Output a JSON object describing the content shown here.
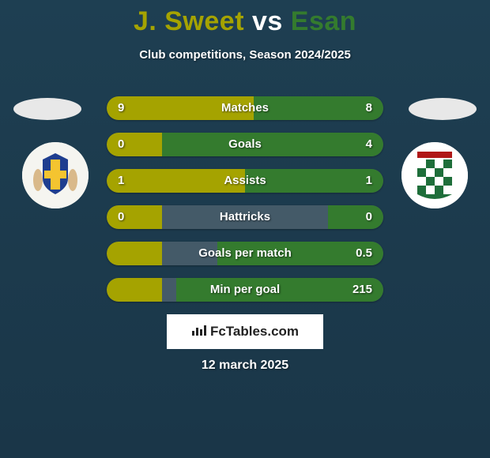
{
  "title": {
    "player1": "J. Sweet",
    "vs": "vs",
    "player2": "Esan"
  },
  "subtitle": "Club competitions, Season 2024/2025",
  "colors": {
    "p1": "#a5a300",
    "p2": "#347b2e",
    "bar_bg": "#445a68",
    "page_bg": "#1c3c4f"
  },
  "stats": [
    {
      "label": "Matches",
      "left_val": "9",
      "right_val": "8",
      "left_pct": 53,
      "right_pct": 47
    },
    {
      "label": "Goals",
      "left_val": "0",
      "right_val": "4",
      "left_pct": 20,
      "right_pct": 80
    },
    {
      "label": "Assists",
      "left_val": "1",
      "right_val": "1",
      "left_pct": 50,
      "right_pct": 50
    },
    {
      "label": "Hattricks",
      "left_val": "0",
      "right_val": "0",
      "left_pct": 20,
      "right_pct": 20
    },
    {
      "label": "Goals per match",
      "left_val": "",
      "right_val": "0.5",
      "left_pct": 20,
      "right_pct": 60
    },
    {
      "label": "Min per goal",
      "left_val": "",
      "right_val": "215",
      "left_pct": 20,
      "right_pct": 75
    }
  ],
  "footer": {
    "brand": "FcTables.com"
  },
  "date": "12 march 2025"
}
